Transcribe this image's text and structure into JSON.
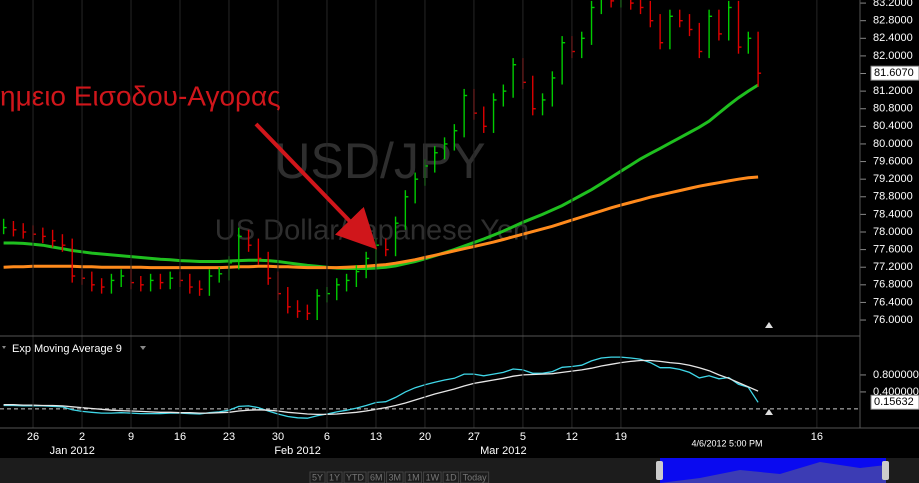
{
  "chart_data": [
    {
      "type": "ohlc",
      "title": "USD/JPY",
      "subtitle": "US Dollar/Japanese Yen",
      "annotation": "ημειο Εισοδου-Αγορας",
      "cursor_label": "4/6/2012 5:00 PM",
      "up_color": "#00cc00",
      "down_color": "#dd0000",
      "categories": [
        null,
        null,
        null,
        null,
        null,
        null,
        null,
        null,
        null,
        null,
        null,
        null,
        null,
        null,
        null,
        null,
        null,
        null,
        null,
        null,
        null,
        null,
        null,
        null,
        null,
        null,
        null,
        null,
        null,
        null,
        null,
        null,
        null,
        null,
        null,
        null,
        null,
        null,
        null,
        null,
        null,
        null,
        null,
        null,
        null,
        null,
        null,
        null,
        null,
        null,
        null,
        null,
        null,
        null,
        null,
        null,
        null,
        null,
        null,
        null,
        null,
        null,
        null,
        null,
        null,
        null,
        null,
        null,
        null,
        null,
        null,
        null,
        null,
        null,
        null,
        null,
        null,
        null
      ],
      "high": [
        78.3,
        78.25,
        78.2,
        78.15,
        78.1,
        78.05,
        77.95,
        77.85,
        77.15,
        77.1,
        76.95,
        77.05,
        77.15,
        77.15,
        77.0,
        77.05,
        77.05,
        77.1,
        77.1,
        77.05,
        76.9,
        77.15,
        77.2,
        77.45,
        78.1,
        78.05,
        77.85,
        77.55,
        77.1,
        76.75,
        76.45,
        76.35,
        76.7,
        76.75,
        76.95,
        77.05,
        77.25,
        77.55,
        77.85,
        77.85,
        78.35,
        78.95,
        79.35,
        79.65,
        79.95,
        80.15,
        80.45,
        81.25,
        81.25,
        80.85,
        81.15,
        81.35,
        81.95,
        81.95,
        81.55,
        81.15,
        81.65,
        82.45,
        82.45,
        82.55,
        83.25,
        83.45,
        83.45,
        83.45,
        83.45,
        83.35,
        83.25,
        82.95,
        83.05,
        83.05,
        82.95,
        82.75,
        83.05,
        83.05,
        83.25,
        83.25,
        82.55,
        82.55
      ],
      "low": [
        77.95,
        77.9,
        77.85,
        77.8,
        77.75,
        77.65,
        77.55,
        76.85,
        76.8,
        76.65,
        76.6,
        76.6,
        76.75,
        76.7,
        76.65,
        76.65,
        76.7,
        76.7,
        76.75,
        76.6,
        76.55,
        76.55,
        76.85,
        76.9,
        77.15,
        77.55,
        77.25,
        76.8,
        76.45,
        76.15,
        76.05,
        76.0,
        76.0,
        76.4,
        76.45,
        76.65,
        76.75,
        76.95,
        77.25,
        77.45,
        77.45,
        78.05,
        78.65,
        79.05,
        79.35,
        79.65,
        79.85,
        80.15,
        80.55,
        80.25,
        80.25,
        80.85,
        81.05,
        81.25,
        80.65,
        80.65,
        80.85,
        81.35,
        81.95,
        81.95,
        82.25,
        82.95,
        83.1,
        83.1,
        83.05,
        82.95,
        82.65,
        82.15,
        82.15,
        82.65,
        82.45,
        81.95,
        81.95,
        82.35,
        82.35,
        82.05,
        82.05,
        81.3
      ],
      "close": [
        78.1,
        78.05,
        78.0,
        77.95,
        77.9,
        77.8,
        77.7,
        77.0,
        76.95,
        76.8,
        76.75,
        76.9,
        77.0,
        76.85,
        76.8,
        76.9,
        76.85,
        76.95,
        76.9,
        76.75,
        76.7,
        77.0,
        77.05,
        77.3,
        77.9,
        77.7,
        77.4,
        76.95,
        76.6,
        76.3,
        76.2,
        76.15,
        76.55,
        76.6,
        76.8,
        76.9,
        77.1,
        77.4,
        77.7,
        77.6,
        78.2,
        78.8,
        79.2,
        79.5,
        79.8,
        80.0,
        80.3,
        81.1,
        80.7,
        80.4,
        81.0,
        81.2,
        81.8,
        81.4,
        80.8,
        81.0,
        81.5,
        82.3,
        82.1,
        82.4,
        83.1,
        83.3,
        83.25,
        83.3,
        83.2,
        83.1,
        82.8,
        82.3,
        82.9,
        82.8,
        82.6,
        82.1,
        82.9,
        82.5,
        83.1,
        82.2,
        82.4,
        81.607
      ],
      "close_label": "81.6070",
      "lines": [
        {
          "color": "#1fbf1f",
          "values": [
            77.75,
            77.75,
            77.74,
            77.72,
            77.7,
            77.66,
            77.62,
            77.58,
            77.55,
            77.52,
            77.5,
            77.48,
            77.46,
            77.44,
            77.42,
            77.4,
            77.38,
            77.37,
            77.35,
            77.34,
            77.33,
            77.33,
            77.33,
            77.34,
            77.35,
            77.36,
            77.36,
            77.35,
            77.33,
            77.3,
            77.27,
            77.24,
            77.22,
            77.2,
            77.18,
            77.17,
            77.17,
            77.17,
            77.18,
            77.2,
            77.23,
            77.28,
            77.33,
            77.39,
            77.46,
            77.53,
            77.6,
            77.68,
            77.76,
            77.84,
            77.93,
            78.02,
            78.12,
            78.22,
            78.31,
            78.4,
            78.5,
            78.6,
            78.72,
            78.84,
            78.96,
            79.1,
            79.24,
            79.38,
            79.52,
            79.66,
            79.78,
            79.9,
            80.02,
            80.14,
            80.26,
            80.38,
            80.52,
            80.7,
            80.88,
            81.05,
            81.2,
            81.34
          ]
        },
        {
          "color": "#ff8a1c",
          "values": [
            77.2,
            77.21,
            77.21,
            77.22,
            77.22,
            77.22,
            77.22,
            77.22,
            77.21,
            77.21,
            77.2,
            77.2,
            77.2,
            77.2,
            77.2,
            77.19,
            77.19,
            77.19,
            77.19,
            77.19,
            77.19,
            77.19,
            77.19,
            77.2,
            77.21,
            77.21,
            77.22,
            77.22,
            77.21,
            77.21,
            77.2,
            77.19,
            77.19,
            77.19,
            77.19,
            77.2,
            77.21,
            77.22,
            77.24,
            77.26,
            77.29,
            77.33,
            77.37,
            77.42,
            77.47,
            77.52,
            77.57,
            77.62,
            77.67,
            77.72,
            77.77,
            77.83,
            77.89,
            77.95,
            78.01,
            78.07,
            78.13,
            78.2,
            78.27,
            78.34,
            78.41,
            78.48,
            78.55,
            78.61,
            78.67,
            78.73,
            78.79,
            78.84,
            78.89,
            78.94,
            78.99,
            79.04,
            79.08,
            79.12,
            79.16,
            79.2,
            79.23,
            79.25
          ]
        }
      ],
      "xlim": [
        -0.37,
        87.4
      ],
      "xticks": [
        {
          "value": 3,
          "label": "26"
        },
        {
          "value": 8,
          "label": "2"
        },
        {
          "value": 13,
          "label": "9"
        },
        {
          "value": 18,
          "label": "16"
        },
        {
          "value": 23,
          "label": "23"
        },
        {
          "value": 28,
          "label": "30"
        },
        {
          "value": 33,
          "label": "6"
        },
        {
          "value": 38,
          "label": "13"
        },
        {
          "value": 43,
          "label": "20"
        },
        {
          "value": 48,
          "label": "27"
        },
        {
          "value": 53,
          "label": "5"
        },
        {
          "value": 58,
          "label": "12"
        },
        {
          "value": 63,
          "label": "19"
        },
        {
          "value": 83,
          "label": "16"
        }
      ],
      "month_ticks": [
        {
          "value": 7,
          "label": "Jan 2012"
        },
        {
          "value": 30,
          "label": "Feb 2012"
        },
        {
          "value": 51,
          "label": "Mar 2012"
        }
      ],
      "ylim": [
        75.66,
        83.27
      ],
      "yticks": [
        {
          "value": 76.0,
          "label": "76.0000"
        },
        {
          "value": 76.4,
          "label": "76.4000"
        },
        {
          "value": 76.8,
          "label": "76.8000"
        },
        {
          "value": 77.2,
          "label": "77.2000"
        },
        {
          "value": 77.6,
          "label": "77.6000"
        },
        {
          "value": 78.0,
          "label": "78.0000"
        },
        {
          "value": 78.4,
          "label": "78.4000"
        },
        {
          "value": 78.8,
          "label": "78.8000"
        },
        {
          "value": 79.2,
          "label": "79.2000"
        },
        {
          "value": 79.6,
          "label": "79.6000"
        },
        {
          "value": 80.0,
          "label": "80.0000"
        },
        {
          "value": 80.4,
          "label": "80.4000"
        },
        {
          "value": 80.8,
          "label": "80.8000"
        },
        {
          "value": 81.2,
          "label": "81.2000"
        },
        {
          "value": 81.6,
          "label": "81.6000"
        },
        {
          "value": 82.0,
          "label": "82.0000"
        },
        {
          "value": 82.4,
          "label": "82.4000"
        },
        {
          "value": 82.8,
          "label": "82.8000"
        },
        {
          "value": 83.2,
          "label": "83.2000"
        }
      ],
      "grid": "x"
    },
    {
      "type": "line",
      "title": "Exp Moving Average 9",
      "series": [
        {
          "color": "#3fd7e8",
          "values": [
            0.08,
            0.08,
            0.07,
            0.07,
            0.07,
            0.06,
            0.05,
            -0.02,
            -0.06,
            -0.08,
            -0.1,
            -0.1,
            -0.09,
            -0.1,
            -0.11,
            -0.11,
            -0.11,
            -0.1,
            -0.1,
            -0.11,
            -0.12,
            -0.09,
            -0.07,
            -0.03,
            0.06,
            0.07,
            0.03,
            -0.05,
            -0.12,
            -0.18,
            -0.21,
            -0.22,
            -0.16,
            -0.12,
            -0.07,
            -0.03,
            0.02,
            0.08,
            0.15,
            0.17,
            0.27,
            0.4,
            0.5,
            0.57,
            0.63,
            0.68,
            0.72,
            0.82,
            0.82,
            0.78,
            0.82,
            0.86,
            0.94,
            0.92,
            0.84,
            0.84,
            0.88,
            0.98,
            1.0,
            1.03,
            1.13,
            1.2,
            1.22,
            1.22,
            1.2,
            1.17,
            1.09,
            0.97,
            0.97,
            0.93,
            0.86,
            0.73,
            0.78,
            0.71,
            0.74,
            0.58,
            0.51,
            0.15632
          ],
          "end_label": "0.15632"
        },
        {
          "color": "#e6e6e6",
          "values": [
            0.1,
            0.1,
            0.09,
            0.09,
            0.08,
            0.08,
            0.07,
            0.05,
            0.03,
            0.01,
            -0.01,
            -0.03,
            -0.04,
            -0.05,
            -0.06,
            -0.07,
            -0.08,
            -0.08,
            -0.09,
            -0.09,
            -0.1,
            -0.1,
            -0.09,
            -0.08,
            -0.05,
            -0.03,
            -0.02,
            -0.03,
            -0.05,
            -0.08,
            -0.1,
            -0.12,
            -0.13,
            -0.13,
            -0.12,
            -0.1,
            -0.08,
            -0.05,
            -0.01,
            0.03,
            0.08,
            0.14,
            0.21,
            0.28,
            0.35,
            0.41,
            0.47,
            0.54,
            0.6,
            0.64,
            0.68,
            0.72,
            0.77,
            0.8,
            0.81,
            0.82,
            0.83,
            0.86,
            0.89,
            0.92,
            0.96,
            1.01,
            1.05,
            1.09,
            1.12,
            1.14,
            1.14,
            1.12,
            1.09,
            1.07,
            1.03,
            0.97,
            0.9,
            0.8,
            0.72,
            0.62,
            0.52,
            0.42
          ]
        }
      ],
      "ylim": [
        -0.45,
        1.27
      ],
      "yticks": [
        {
          "value": 0.8,
          "label": "0.800000"
        },
        {
          "value": 0.4,
          "label": "0.400000"
        }
      ],
      "zero_line": 0
    }
  ],
  "toolbar": [
    "5Y",
    "1Y",
    "YTD",
    "6M",
    "3M",
    "1M",
    "1W",
    "1D",
    "Today"
  ]
}
